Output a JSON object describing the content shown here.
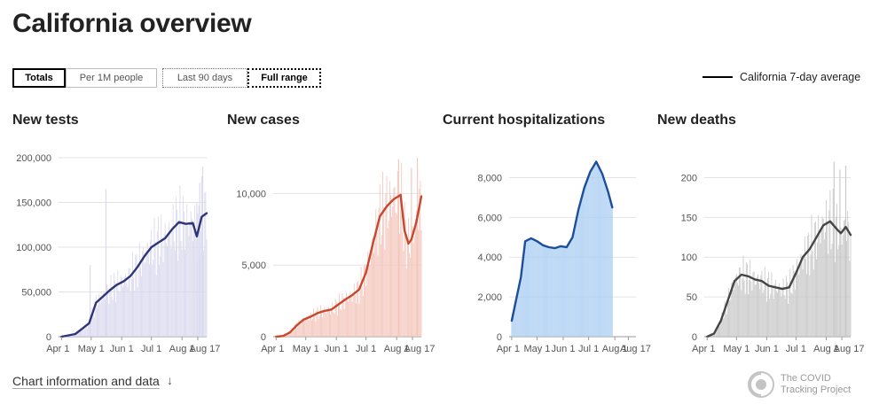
{
  "page": {
    "title": "California overview"
  },
  "toggles": {
    "totals": "Totals",
    "per_capita": "Per 1M people",
    "last_90": "Last 90 days",
    "full_range": "Full range"
  },
  "legend": {
    "label": "California 7-day average"
  },
  "footer": {
    "link_label": "Chart information and data",
    "arrow": "↓"
  },
  "logo": {
    "line1": "The COVID",
    "line2": "Tracking Project"
  },
  "colors": {
    "tests": "#2f3478",
    "cases": "#c9472d",
    "hospitalizations": "#1b4e9c",
    "deaths": "#454545"
  },
  "chart_data": [
    {
      "type": "bar",
      "title": "New tests",
      "x_ticks": [
        "Apr 1",
        "May 1",
        "Jun 1",
        "Jul 1",
        "Aug 1",
        "Aug 17"
      ],
      "ylim": [
        0,
        200000
      ],
      "yticks": [
        0,
        50000,
        100000,
        150000,
        200000
      ],
      "ytick_labels": [
        "0",
        "50,000",
        "100,000",
        "150,000",
        "200,000"
      ],
      "grid": true,
      "bar_color": "#d9d9ee",
      "line_color": "#2f3478",
      "avg": [
        [
          3,
          0
        ],
        [
          10,
          1500
        ],
        [
          17,
          3000
        ],
        [
          24,
          9000
        ],
        [
          31,
          15000
        ],
        [
          38,
          38000
        ],
        [
          45,
          45000
        ],
        [
          52,
          52000
        ],
        [
          59,
          58000
        ],
        [
          66,
          62000
        ],
        [
          73,
          68000
        ],
        [
          80,
          78000
        ],
        [
          87,
          90000
        ],
        [
          94,
          100000
        ],
        [
          101,
          105000
        ],
        [
          108,
          110000
        ],
        [
          115,
          120000
        ],
        [
          122,
          128000
        ],
        [
          129,
          126000
        ],
        [
          136,
          127000
        ],
        [
          140,
          112000
        ],
        [
          145,
          134000
        ],
        [
          150,
          138000
        ]
      ],
      "spikes": [
        [
          32,
          80000
        ],
        [
          48,
          165000
        ],
        [
          140,
          150000
        ],
        [
          143,
          172000
        ],
        [
          146,
          190000
        ]
      ]
    },
    {
      "type": "bar",
      "title": "New cases",
      "x_ticks": [
        "Apr 1",
        "May 1",
        "Jun 1",
        "Jul 1",
        "Aug 1",
        "Aug 17"
      ],
      "ylim": [
        0,
        12500
      ],
      "yticks": [
        0,
        5000,
        10000
      ],
      "ytick_labels": [
        "0",
        "5,000",
        "10,000"
      ],
      "grid": true,
      "bar_color": "#f3c6bb",
      "line_color": "#c9472d",
      "avg": [
        [
          3,
          0
        ],
        [
          10,
          50
        ],
        [
          17,
          300
        ],
        [
          24,
          800
        ],
        [
          31,
          1200
        ],
        [
          38,
          1400
        ],
        [
          45,
          1650
        ],
        [
          52,
          1800
        ],
        [
          59,
          1900
        ],
        [
          66,
          2250
        ],
        [
          73,
          2600
        ],
        [
          80,
          2900
        ],
        [
          87,
          3300
        ],
        [
          94,
          4500
        ],
        [
          101,
          6500
        ],
        [
          108,
          8400
        ],
        [
          115,
          9100
        ],
        [
          122,
          9600
        ],
        [
          129,
          9900
        ],
        [
          133,
          7400
        ],
        [
          137,
          6500
        ],
        [
          140,
          6800
        ],
        [
          145,
          8000
        ],
        [
          150,
          9800
        ]
      ],
      "spikes": [
        [
          127,
          12400
        ],
        [
          140,
          11800
        ],
        [
          146,
          12500
        ]
      ]
    },
    {
      "type": "bar",
      "title": "Current hospitalizations",
      "x_ticks": [
        "Apr 1",
        "May 1",
        "Jun 1",
        "Jul 1",
        "Aug 1",
        "Aug 17"
      ],
      "ylim": [
        0,
        9000
      ],
      "yticks": [
        0,
        2000,
        4000,
        6000,
        8000
      ],
      "ytick_labels": [
        "0",
        "2,000",
        "4,000",
        "6,000",
        "8,000"
      ],
      "grid": true,
      "bar_color": "#a9cdf2",
      "line_color": "#1b4e9c",
      "avg": [
        [
          3,
          800
        ],
        [
          8,
          1800
        ],
        [
          14,
          3000
        ],
        [
          19,
          4800
        ],
        [
          26,
          4950
        ],
        [
          33,
          4800
        ],
        [
          40,
          4600
        ],
        [
          47,
          4500
        ],
        [
          54,
          4450
        ],
        [
          61,
          4550
        ],
        [
          68,
          4500
        ],
        [
          75,
          5000
        ],
        [
          82,
          6400
        ],
        [
          89,
          7500
        ],
        [
          96,
          8300
        ],
        [
          103,
          8800
        ],
        [
          110,
          8200
        ],
        [
          117,
          7300
        ],
        [
          122,
          6500
        ]
      ],
      "spikes": []
    },
    {
      "type": "bar",
      "title": "New deaths",
      "x_ticks": [
        "Apr 1",
        "May 1",
        "Jun 1",
        "Jul 1",
        "Aug 1",
        "Aug 17"
      ],
      "ylim": [
        0,
        225
      ],
      "yticks": [
        0,
        50,
        100,
        150,
        200
      ],
      "ytick_labels": [
        "0",
        "50",
        "100",
        "150",
        "200"
      ],
      "grid": true,
      "bar_color": "#c8c8c8",
      "line_color": "#454545",
      "avg": [
        [
          3,
          0
        ],
        [
          10,
          4
        ],
        [
          17,
          20
        ],
        [
          24,
          45
        ],
        [
          31,
          70
        ],
        [
          38,
          78
        ],
        [
          45,
          76
        ],
        [
          52,
          72
        ],
        [
          59,
          70
        ],
        [
          66,
          64
        ],
        [
          73,
          62
        ],
        [
          80,
          60
        ],
        [
          87,
          62
        ],
        [
          94,
          80
        ],
        [
          101,
          100
        ],
        [
          108,
          110
        ],
        [
          115,
          125
        ],
        [
          122,
          140
        ],
        [
          129,
          145
        ],
        [
          136,
          135
        ],
        [
          140,
          130
        ],
        [
          145,
          138
        ],
        [
          150,
          128
        ]
      ],
      "spikes": [
        [
          133,
          220
        ],
        [
          139,
          210
        ],
        [
          145,
          215
        ]
      ]
    }
  ]
}
